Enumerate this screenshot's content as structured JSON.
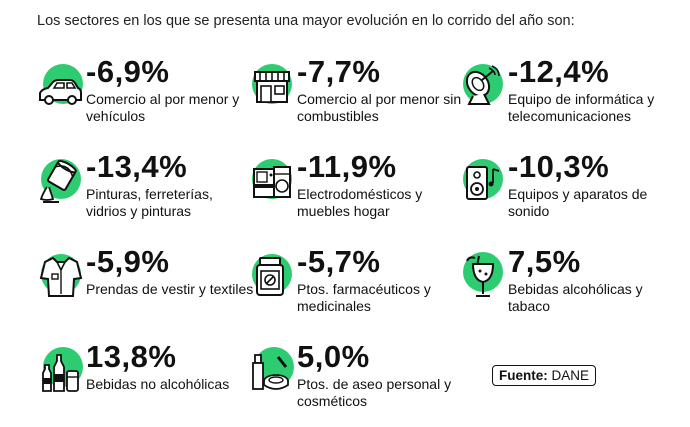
{
  "intro": "Los sectores en los que se presenta una mayor evolución en lo corrido del año son:",
  "colors": {
    "accent": "#2ecc71",
    "ink": "#111111"
  },
  "items": [
    {
      "value": "-6,9%",
      "label": "Comercio al por menor y vehículos",
      "icon": "car-icon"
    },
    {
      "value": "-7,7%",
      "label": "Comercio al por menor sin combustibles",
      "icon": "store-icon"
    },
    {
      "value": "-12,4%",
      "label": "Equipo de informática y telecomunicaciones",
      "icon": "satellite-icon"
    },
    {
      "value": "-13,4%",
      "label": "Pinturas, ferreterías, vidrios y pinturas",
      "icon": "paint-can-icon"
    },
    {
      "value": "-11,9%",
      "label": "Electrodomésticos y muebles hogar",
      "icon": "appliances-icon"
    },
    {
      "value": "-10,3%",
      "label": "Equipos y aparatos de sonido",
      "icon": "speaker-icon"
    },
    {
      "value": "-5,9%",
      "label": "Prendas de vestir y textiles",
      "icon": "shirt-icon"
    },
    {
      "value": "-5,7%",
      "label": "Ptos. farmacéuticos y medicinales",
      "icon": "medicine-jar-icon"
    },
    {
      "value": "7,5%",
      "label": "Bebidas alcohólicas y tabaco",
      "icon": "cocktail-icon"
    },
    {
      "value": "13,8%",
      "label": "Bebidas no alcohólicas",
      "icon": "bottles-icon"
    },
    {
      "value": "5,0%",
      "label": "Ptos. de aseo personal y cosméticos",
      "icon": "cosmetics-icon"
    }
  ],
  "source": {
    "label": "Fuente:",
    "value": "DANE"
  }
}
